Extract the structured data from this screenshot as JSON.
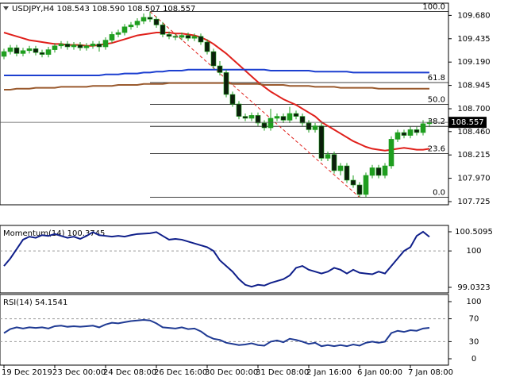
{
  "chart_data": {
    "type": "candlestick",
    "title": "USDJPY,H4  108.543 108.590 108.507 108.557",
    "categories": [
      "19 Dec 2019",
      null,
      null,
      null,
      null,
      null,
      null,
      null,
      "23 Dec 00:00",
      null,
      null,
      null,
      null,
      null,
      null,
      null,
      "24 Dec 08:00",
      null,
      null,
      null,
      null,
      null,
      null,
      null,
      "26 Dec 16:00",
      null,
      null,
      null,
      null,
      null,
      null,
      null,
      "30 Dec 00:00",
      null,
      null,
      null,
      null,
      null,
      null,
      null,
      "31 Dec 08:00",
      null,
      null,
      null,
      null,
      null,
      null,
      null,
      "2 Jan 16:00",
      null,
      null,
      null,
      null,
      null,
      null,
      null,
      "6 Jan 00:00",
      null,
      null,
      null,
      null,
      null,
      null,
      null,
      "7 Jan 08:00",
      null,
      null,
      null
    ],
    "open": [
      109.25,
      109.3,
      109.34,
      109.28,
      109.31,
      109.33,
      109.29,
      109.27,
      109.32,
      109.36,
      109.38,
      109.35,
      109.37,
      109.34,
      109.36,
      109.38,
      109.35,
      109.42,
      109.48,
      109.5,
      109.56,
      109.58,
      109.62,
      109.66,
      109.64,
      109.58,
      109.48,
      109.46,
      109.45,
      109.47,
      109.44,
      109.46,
      109.4,
      109.3,
      109.15,
      109.08,
      108.85,
      108.75,
      108.62,
      108.6,
      108.63,
      108.55,
      108.5,
      108.6,
      108.62,
      108.58,
      108.65,
      108.62,
      108.55,
      108.48,
      108.52,
      108.18,
      108.22,
      108.05,
      108.1,
      107.95,
      107.9,
      107.8,
      108.0,
      108.08,
      108.0,
      108.1,
      108.38,
      108.45,
      108.42,
      108.48,
      108.45,
      108.543
    ],
    "high": [
      109.33,
      109.37,
      109.37,
      109.34,
      109.36,
      109.36,
      109.32,
      109.35,
      109.39,
      109.41,
      109.41,
      109.4,
      109.4,
      109.39,
      109.41,
      109.41,
      109.45,
      109.51,
      109.53,
      109.59,
      109.61,
      109.65,
      109.7,
      109.72,
      109.67,
      109.61,
      109.51,
      109.49,
      109.5,
      109.5,
      109.49,
      109.49,
      109.43,
      109.33,
      109.2,
      109.11,
      108.88,
      108.78,
      108.65,
      108.66,
      108.66,
      108.58,
      108.7,
      108.65,
      108.65,
      108.72,
      108.68,
      108.65,
      108.58,
      108.55,
      108.55,
      108.25,
      108.25,
      108.13,
      108.13,
      108.0,
      107.93,
      108.03,
      108.11,
      108.11,
      108.13,
      108.41,
      108.48,
      108.48,
      108.51,
      108.51,
      108.58,
      108.59
    ],
    "low": [
      109.22,
      109.27,
      109.25,
      109.25,
      109.28,
      109.26,
      109.24,
      109.24,
      109.29,
      109.33,
      109.32,
      109.32,
      109.31,
      109.31,
      109.33,
      109.3,
      109.32,
      109.39,
      109.45,
      109.47,
      109.53,
      109.55,
      109.59,
      109.61,
      109.55,
      109.45,
      109.43,
      109.42,
      109.42,
      109.41,
      109.41,
      109.37,
      109.27,
      109.12,
      109.05,
      108.82,
      108.72,
      108.59,
      108.57,
      108.57,
      108.52,
      108.47,
      108.47,
      108.57,
      108.55,
      108.55,
      108.59,
      108.52,
      108.45,
      108.45,
      108.15,
      108.15,
      108.02,
      108.0,
      107.92,
      107.87,
      107.77,
      107.77,
      107.97,
      107.97,
      107.97,
      108.07,
      108.35,
      108.39,
      108.39,
      108.42,
      108.42,
      108.507
    ],
    "close": [
      109.3,
      109.34,
      109.28,
      109.31,
      109.33,
      109.29,
      109.27,
      109.32,
      109.36,
      109.38,
      109.35,
      109.37,
      109.34,
      109.36,
      109.38,
      109.35,
      109.42,
      109.48,
      109.5,
      109.56,
      109.58,
      109.62,
      109.66,
      109.64,
      109.58,
      109.48,
      109.46,
      109.45,
      109.47,
      109.44,
      109.46,
      109.4,
      109.3,
      109.15,
      109.08,
      108.85,
      108.75,
      108.62,
      108.6,
      108.63,
      108.55,
      108.5,
      108.6,
      108.62,
      108.58,
      108.65,
      108.62,
      108.55,
      108.48,
      108.52,
      108.18,
      108.22,
      108.05,
      108.1,
      107.95,
      107.9,
      107.8,
      108.0,
      108.08,
      108.0,
      108.1,
      108.38,
      108.45,
      108.42,
      108.48,
      108.45,
      108.543,
      108.557
    ],
    "up_color": "#1f9e1f",
    "down_color": "#0b1f0b",
    "ylim": [
      107.7,
      109.8
    ],
    "yticks": [
      {
        "value": 109.68,
        "label": "109.680"
      },
      109.435,
      {
        "value": 109.19,
        "label": "109.190"
      },
      108.945,
      {
        "value": 108.7,
        "label": "108.700"
      },
      {
        "value": 108.46,
        "label": "108.460"
      },
      108.215,
      {
        "value": 107.97,
        "label": "107.970"
      },
      107.725
    ],
    "lines": [
      {
        "color": "#e0201b",
        "values": [
          109.5,
          109.48,
          109.46,
          109.44,
          109.42,
          109.41,
          109.4,
          109.39,
          109.38,
          109.38,
          109.37,
          109.37,
          109.37,
          109.36,
          109.36,
          109.37,
          109.38,
          109.39,
          109.41,
          109.43,
          109.45,
          109.47,
          109.48,
          109.49,
          109.5,
          109.5,
          109.5,
          109.49,
          109.49,
          109.48,
          109.47,
          109.45,
          109.42,
          109.38,
          109.33,
          109.28,
          109.22,
          109.16,
          109.1,
          109.04,
          108.98,
          108.93,
          108.88,
          108.84,
          108.8,
          108.77,
          108.74,
          108.7,
          108.66,
          108.62,
          108.56,
          108.52,
          108.48,
          108.44,
          108.4,
          108.36,
          108.33,
          108.3,
          108.28,
          108.27,
          108.26,
          108.27,
          108.28,
          108.29,
          108.28,
          108.27,
          108.27,
          108.28
        ]
      },
      {
        "color": "#1c3fd0",
        "values": [
          109.05,
          109.05,
          109.05,
          109.05,
          109.05,
          109.05,
          109.05,
          109.05,
          109.05,
          109.05,
          109.05,
          109.05,
          109.05,
          109.05,
          109.05,
          109.05,
          109.06,
          109.06,
          109.06,
          109.07,
          109.07,
          109.07,
          109.08,
          109.08,
          109.09,
          109.09,
          109.1,
          109.1,
          109.1,
          109.11,
          109.11,
          109.11,
          109.11,
          109.11,
          109.11,
          109.11,
          109.11,
          109.11,
          109.11,
          109.11,
          109.11,
          109.11,
          109.1,
          109.1,
          109.1,
          109.1,
          109.1,
          109.1,
          109.1,
          109.09,
          109.09,
          109.09,
          109.09,
          109.09,
          109.09,
          109.08,
          109.08,
          109.08,
          109.08,
          109.08,
          109.08,
          109.08,
          109.08,
          109.08,
          109.08,
          109.08,
          109.08,
          109.08
        ]
      },
      {
        "color": "#9a5a2e",
        "values": [
          108.9,
          108.9,
          108.91,
          108.91,
          108.91,
          108.92,
          108.92,
          108.92,
          108.92,
          108.93,
          108.93,
          108.93,
          108.93,
          108.93,
          108.94,
          108.94,
          108.94,
          108.94,
          108.95,
          108.95,
          108.95,
          108.95,
          108.96,
          108.96,
          108.96,
          108.96,
          108.97,
          108.97,
          108.97,
          108.97,
          108.97,
          108.97,
          108.97,
          108.97,
          108.97,
          108.97,
          108.96,
          108.96,
          108.96,
          108.96,
          108.96,
          108.95,
          108.95,
          108.95,
          108.95,
          108.94,
          108.94,
          108.94,
          108.94,
          108.93,
          108.93,
          108.93,
          108.93,
          108.92,
          108.92,
          108.92,
          108.92,
          108.92,
          108.92,
          108.91,
          108.91,
          108.91,
          108.91,
          108.91,
          108.91,
          108.91,
          108.91,
          108.91
        ]
      }
    ],
    "fibonacci": {
      "high": 109.72,
      "low": 107.77,
      "color": "#e0201b",
      "levels": [
        {
          "value": 100,
          "label": "100.0"
        },
        61.8,
        {
          "value": 50,
          "label": "50.0"
        },
        38.2,
        23.6,
        {
          "value": 0,
          "label": "0.0"
        }
      ]
    },
    "momentum": {
      "title": "Momentum(14) 100.3745",
      "color": "#0f1f8a",
      "ylim": [
        99.0323,
        100.5095
      ],
      "yticks": [
        100.5095,
        100,
        99.0323
      ],
      "values": [
        99.6,
        99.8,
        100.05,
        100.3,
        100.38,
        100.35,
        100.42,
        100.4,
        100.45,
        100.4,
        100.35,
        100.38,
        100.32,
        100.4,
        100.5,
        100.42,
        100.4,
        100.38,
        100.4,
        100.38,
        100.42,
        100.45,
        100.46,
        100.47,
        100.5,
        100.4,
        100.3,
        100.32,
        100.3,
        100.25,
        100.2,
        100.15,
        100.1,
        100.0,
        99.75,
        99.6,
        99.45,
        99.25,
        99.1,
        99.05,
        99.1,
        99.08,
        99.15,
        99.2,
        99.25,
        99.35,
        99.55,
        99.6,
        99.5,
        99.45,
        99.4,
        99.45,
        99.55,
        99.5,
        99.4,
        99.5,
        99.42,
        99.4,
        99.38,
        99.45,
        99.4,
        99.6,
        99.8,
        100.0,
        100.1,
        100.4,
        100.5095,
        100.3745
      ]
    },
    "rsi": {
      "title": "RSI(14) 54.1541",
      "color": "#1f3a93",
      "ylim": [
        0,
        100
      ],
      "yticks": [
        100,
        70,
        30,
        0
      ],
      "values": [
        45,
        52,
        55,
        53,
        55,
        54,
        55,
        53,
        57,
        58,
        56,
        57,
        56,
        57,
        58,
        55,
        60,
        63,
        62,
        64,
        66,
        67,
        68,
        67,
        62,
        55,
        54,
        53,
        55,
        52,
        53,
        48,
        40,
        35,
        33,
        28,
        26,
        24,
        25,
        27,
        24,
        23,
        30,
        32,
        29,
        35,
        33,
        30,
        26,
        28,
        22,
        24,
        22,
        24,
        22,
        25,
        23,
        28,
        30,
        28,
        30,
        45,
        49,
        47,
        50,
        49,
        53,
        54.1541
      ]
    }
  }
}
